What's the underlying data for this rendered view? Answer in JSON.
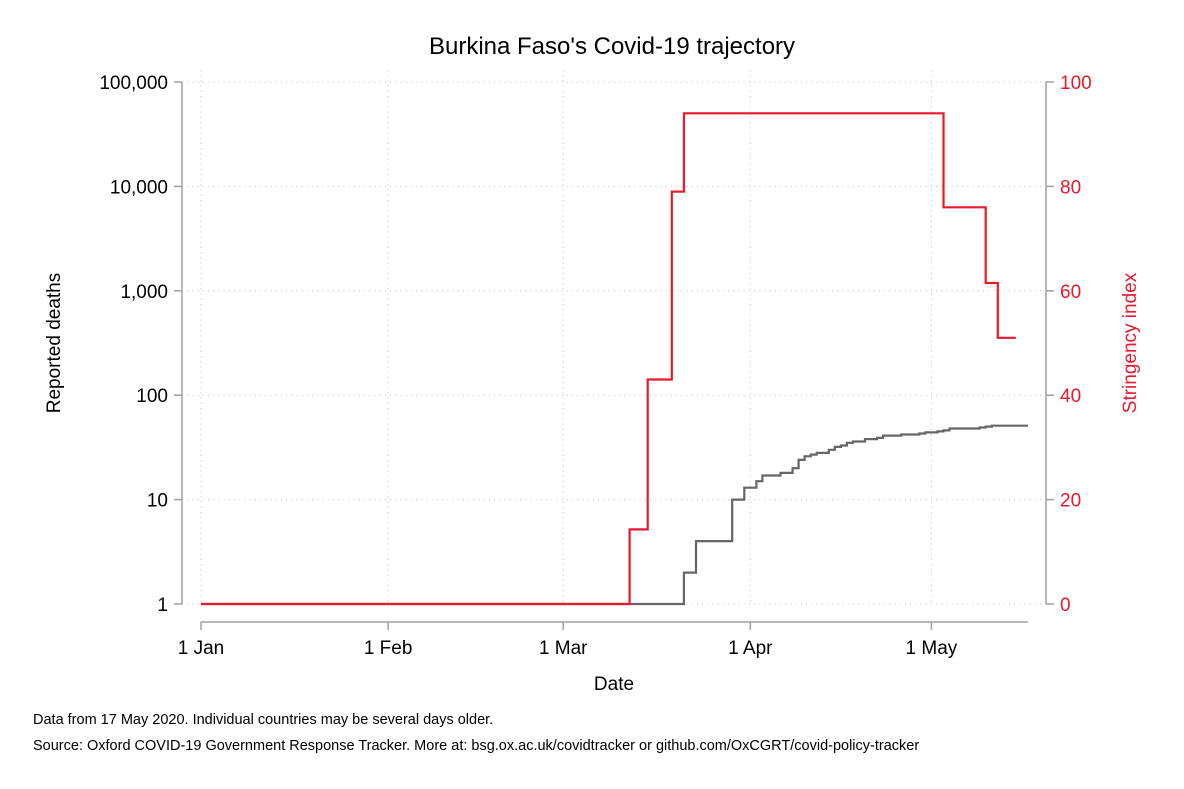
{
  "chart_data": {
    "type": "line",
    "title": "Burkina Faso's Covid-19 trajectory",
    "xlabel": "Date",
    "ylabel": "Reported deaths",
    "y2label": "Stringency index",
    "x_range": [
      "2020-01-01",
      "2020-05-17"
    ],
    "x_ticks": [
      {
        "date": "2020-01-01",
        "label": "1 Jan"
      },
      {
        "date": "2020-02-01",
        "label": "1 Feb"
      },
      {
        "date": "2020-03-01",
        "label": "1 Mar"
      },
      {
        "date": "2020-04-01",
        "label": "1 Apr"
      },
      {
        "date": "2020-05-01",
        "label": "1 May"
      }
    ],
    "y_scale": "log",
    "ylim": [
      1,
      100000
    ],
    "y_ticks": [
      {
        "value": 1,
        "label": "1"
      },
      {
        "value": 10,
        "label": "10"
      },
      {
        "value": 100,
        "label": "100"
      },
      {
        "value": 1000,
        "label": "1,000"
      },
      {
        "value": 10000,
        "label": "10,000"
      },
      {
        "value": 100000,
        "label": "100,000"
      }
    ],
    "y2lim": [
      0,
      100
    ],
    "y2_ticks": [
      {
        "value": 0,
        "label": "0"
      },
      {
        "value": 20,
        "label": "20"
      },
      {
        "value": 40,
        "label": "40"
      },
      {
        "value": 60,
        "label": "60"
      },
      {
        "value": 80,
        "label": "80"
      },
      {
        "value": 100,
        "label": "100"
      }
    ],
    "grid": true,
    "colors": {
      "deaths": "#666666",
      "stringency": "#e8192c",
      "axis": "#a0a0a0",
      "grid": "#c8c8c8"
    },
    "series": [
      {
        "axis": "left",
        "color": "#666666",
        "points": [
          [
            "2020-01-01",
            1
          ],
          [
            "2020-03-20",
            1
          ],
          [
            "2020-03-21",
            2
          ],
          [
            "2020-03-22",
            2
          ],
          [
            "2020-03-23",
            4
          ],
          [
            "2020-03-28",
            4
          ],
          [
            "2020-03-29",
            10
          ],
          [
            "2020-03-30",
            10
          ],
          [
            "2020-03-31",
            13
          ],
          [
            "2020-04-01",
            13
          ],
          [
            "2020-04-02",
            15
          ],
          [
            "2020-04-03",
            17
          ],
          [
            "2020-04-05",
            17
          ],
          [
            "2020-04-06",
            18
          ],
          [
            "2020-04-07",
            18
          ],
          [
            "2020-04-08",
            20
          ],
          [
            "2020-04-09",
            24
          ],
          [
            "2020-04-10",
            26
          ],
          [
            "2020-04-11",
            27
          ],
          [
            "2020-04-12",
            28
          ],
          [
            "2020-04-13",
            28
          ],
          [
            "2020-04-14",
            30
          ],
          [
            "2020-04-15",
            32
          ],
          [
            "2020-04-16",
            33
          ],
          [
            "2020-04-17",
            35
          ],
          [
            "2020-04-18",
            36
          ],
          [
            "2020-04-19",
            36
          ],
          [
            "2020-04-20",
            38
          ],
          [
            "2020-04-21",
            38
          ],
          [
            "2020-04-22",
            39
          ],
          [
            "2020-04-23",
            41
          ],
          [
            "2020-04-24",
            41
          ],
          [
            "2020-04-25",
            41
          ],
          [
            "2020-04-26",
            42
          ],
          [
            "2020-04-27",
            42
          ],
          [
            "2020-04-28",
            42
          ],
          [
            "2020-04-29",
            43
          ],
          [
            "2020-04-30",
            44
          ],
          [
            "2020-05-01",
            44
          ],
          [
            "2020-05-02",
            45
          ],
          [
            "2020-05-03",
            46
          ],
          [
            "2020-05-04",
            48
          ],
          [
            "2020-05-08",
            48
          ],
          [
            "2020-05-09",
            49
          ],
          [
            "2020-05-10",
            50
          ],
          [
            "2020-05-11",
            51
          ],
          [
            "2020-05-17",
            51
          ]
        ]
      },
      {
        "axis": "right",
        "color": "#e8192c",
        "points": [
          [
            "2020-01-01",
            0
          ],
          [
            "2020-03-11",
            0
          ],
          [
            "2020-03-12",
            14.3
          ],
          [
            "2020-03-14",
            14.3
          ],
          [
            "2020-03-15",
            43
          ],
          [
            "2020-03-18",
            43
          ],
          [
            "2020-03-19",
            79
          ],
          [
            "2020-03-20",
            79
          ],
          [
            "2020-03-21",
            94
          ],
          [
            "2020-05-02",
            94
          ],
          [
            "2020-05-03",
            76
          ],
          [
            "2020-05-09",
            76
          ],
          [
            "2020-05-10",
            61.5
          ],
          [
            "2020-05-11",
            61.5
          ],
          [
            "2020-05-12",
            51
          ],
          [
            "2020-05-15",
            51
          ]
        ]
      }
    ]
  },
  "footer": {
    "note": "Data from 17 May 2020. Individual countries may be several days older.",
    "source": "Source: Oxford COVID-19 Government Response Tracker. More at: bsg.ox.ac.uk/covidtracker or github.com/OxCGRT/covid-policy-tracker"
  }
}
